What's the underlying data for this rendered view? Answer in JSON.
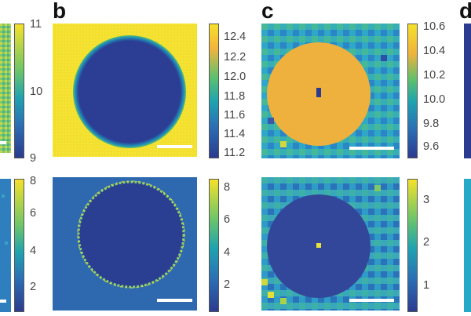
{
  "panel_labels": {
    "b": "b",
    "c": "c",
    "d": "d"
  },
  "colorbars": {
    "a_top": {
      "ticks": [
        "11",
        "10",
        "9"
      ]
    },
    "a_bottom": {
      "ticks": [
        "8",
        "6",
        "4",
        "2"
      ]
    },
    "b_top": {
      "ticks": [
        "12.4",
        "12.2",
        "12.0",
        "11.8",
        "11.6",
        "11.4",
        "11.2"
      ]
    },
    "b_bottom": {
      "ticks": [
        "8",
        "6",
        "4",
        "2"
      ]
    },
    "c_top": {
      "ticks": [
        "10.6",
        "10.4",
        "10.2",
        "10.0",
        "9.8",
        "9.6"
      ]
    },
    "c_bottom": {
      "ticks": [
        "3",
        "2",
        "1"
      ]
    }
  },
  "colors": {
    "low": "#2b3b8f",
    "mid": "#25a9c7",
    "high": "#f5e12a",
    "orange": "#f0b33a"
  }
}
